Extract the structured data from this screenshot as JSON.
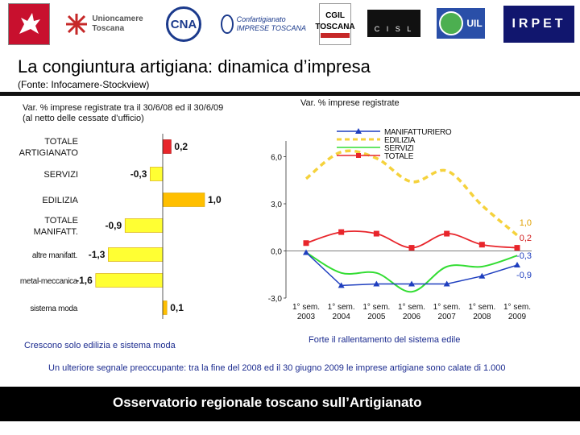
{
  "header": {
    "logos": [
      {
        "name": "regione-toscana-logo",
        "text": ""
      },
      {
        "name": "unioncamere-logo",
        "text": "Unioncamere\nToscana"
      },
      {
        "name": "cna-logo",
        "text": "CNA"
      },
      {
        "name": "confartigianato-logo",
        "text": "Confartigianato\nIMPRESE TOSCANA"
      },
      {
        "name": "cgil-logo",
        "text": "CGIL\nTOSCANA"
      },
      {
        "name": "cisl-logo",
        "text": "C I S L"
      },
      {
        "name": "uil-logo",
        "text": "UIL"
      }
    ],
    "irpet": "IRPET"
  },
  "title": "La congiuntura artigiana: dinamica d’impresa",
  "source": "(Fonte: Infocamere-Stockview)",
  "left_heading_1": "Var. % imprese registrate tra il 30/6/08 ed il 30/6/09",
  "left_heading_2": "(al netto delle cessate d’ufficio)",
  "right_heading": "Var. % imprese registrate",
  "left_caption": "Crescono solo edilizia e sistema moda",
  "right_caption": "Forte il rallentamento del sistema edile",
  "note": "Un ulteriore segnale preoccupante: tra la fine del 2008 ed il 30 giugno 2009 le imprese artigiane sono calate di 1.000",
  "footer": "Osservatorio regionale toscano sull’Artigianato",
  "colors": {
    "red": "#e8252b",
    "yellow": "#ffff33",
    "orange": "#ffbf00",
    "blue": "#1f3fbf",
    "green": "#33dd33",
    "dashed": "#f5d23c"
  },
  "chart_data": [
    {
      "type": "bar",
      "orientation": "horizontal",
      "categories": [
        "TOTALE ARTIGIANATO",
        "SERVIZI",
        "EDILIZIA",
        "TOTALE MANIFATT.",
        "altre manifatt.",
        "metal-meccanica",
        "sistema moda"
      ],
      "category_labels": [
        [
          "TOTALE",
          "ARTIGIANATO"
        ],
        [
          "SERVIZI"
        ],
        [
          "EDILIZIA"
        ],
        [
          "TOTALE",
          "MANIFATT."
        ],
        [
          "altre manifatt."
        ],
        [
          "metal-meccanica"
        ],
        [
          "sistema moda"
        ]
      ],
      "values": [
        0.2,
        -0.3,
        1.0,
        -0.9,
        -1.3,
        -1.6,
        0.1
      ],
      "value_labels": [
        "0,2",
        "-0,3",
        "1,0",
        "-0,9",
        "-1,3",
        "-1,6",
        "0,1"
      ],
      "title": "Var. % imprese registrate tra il 30/6/08 ed il 30/6/09 (al netto delle cessate d’ufficio)"
    },
    {
      "type": "line",
      "x": [
        "1° sem. 2003",
        "1° sem. 2004",
        "1° sem. 2005",
        "1° sem. 2006",
        "1° sem. 2007",
        "1° sem. 2008",
        "1° sem. 2009"
      ],
      "x_labels": [
        [
          "1° sem.",
          "2003"
        ],
        [
          "1° sem.",
          "2004"
        ],
        [
          "1° sem.",
          "2005"
        ],
        [
          "1° sem.",
          "2006"
        ],
        [
          "1° sem.",
          "2007"
        ],
        [
          "1° sem.",
          "2008"
        ],
        [
          "1° sem.",
          "2009"
        ]
      ],
      "ylim": [
        -3.0,
        7.0
      ],
      "yticks": [
        -3.0,
        0.0,
        3.0,
        6.0
      ],
      "ytick_labels": [
        "-3,0",
        "0,0",
        "3,0",
        "6,0"
      ],
      "title": "Var. % imprese registrate",
      "legend": [
        "MANIFATTURIERO",
        "EDILIZIA",
        "SERVIZI",
        "TOTALE"
      ],
      "legend_position": "top",
      "series": [
        {
          "name": "MANIFATTURIERO",
          "values": [
            -0.1,
            -2.2,
            -2.1,
            -2.1,
            -2.1,
            -1.6,
            -0.9
          ],
          "end_label": "-0,9"
        },
        {
          "name": "EDILIZIA",
          "values": [
            4.6,
            6.3,
            5.9,
            4.4,
            5.1,
            2.9,
            1.0
          ],
          "end_label": "1,0"
        },
        {
          "name": "SERVIZI",
          "values": [
            -0.1,
            -1.4,
            -1.4,
            -2.6,
            -1.0,
            -1.0,
            -0.3
          ],
          "end_label": "-0,3"
        },
        {
          "name": "TOTALE",
          "values": [
            0.5,
            1.2,
            1.1,
            0.2,
            1.1,
            0.4,
            0.2
          ],
          "end_label": "0,2"
        }
      ]
    }
  ]
}
